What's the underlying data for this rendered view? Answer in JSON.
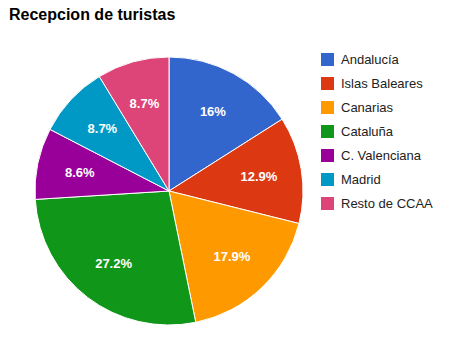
{
  "chart_data": {
    "type": "pie",
    "title": "Recepcion de turistas",
    "categories": [
      "Andalucía",
      "Islas Baleares",
      "Canarias",
      "Cataluña",
      "C. Valenciana",
      "Madrid",
      "Resto de CCAA"
    ],
    "values": [
      16,
      12.9,
      17.9,
      27.2,
      8.6,
      8.7,
      8.7
    ],
    "value_labels": [
      "16%",
      "12.9%",
      "17.9%",
      "27.2%",
      "8.6%",
      "8.7%",
      "8.7%"
    ],
    "colors": [
      "#3366cc",
      "#dc3912",
      "#ff9900",
      "#109618",
      "#990099",
      "#0099c6",
      "#dd4477"
    ],
    "data_labels": true,
    "legend": "right"
  }
}
